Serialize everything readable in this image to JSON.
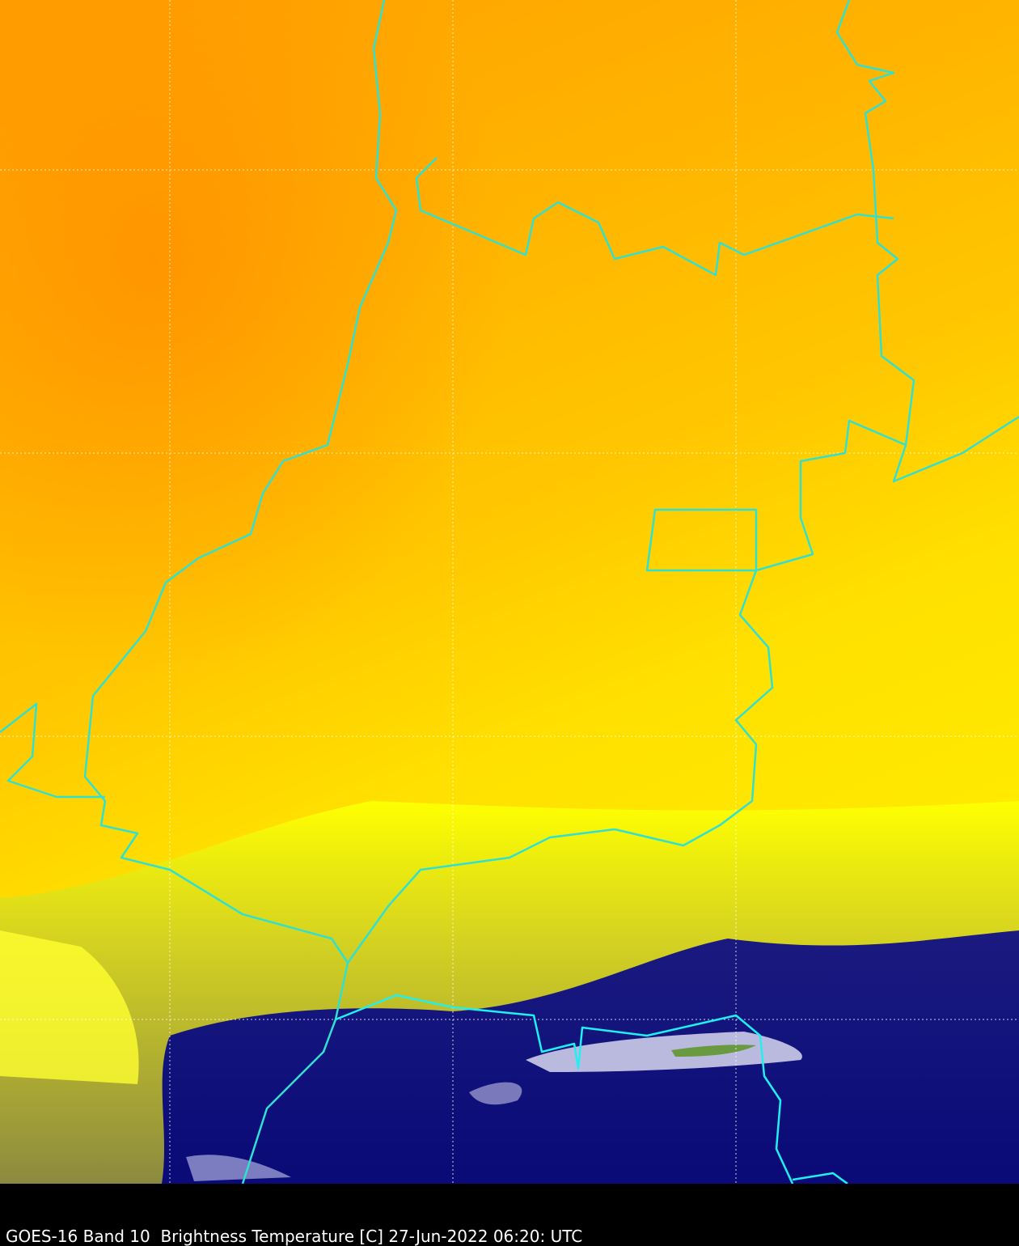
{
  "caption": "GOES-16 Band 10  Brightness Temperature [C] 27-Jun-2022 06:20: UTC"
}
